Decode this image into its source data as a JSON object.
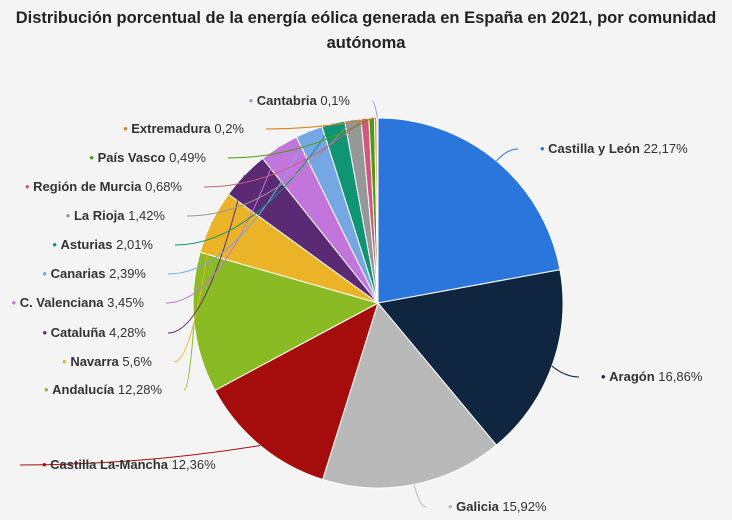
{
  "chart_data": {
    "type": "pie",
    "title": "Distribución porcentual de la energía eólica generada en España en 2021, por comunidad autónoma",
    "unit": "%",
    "slices": [
      {
        "label": "Castilla y León",
        "value": 22.17,
        "display": "22,17%",
        "color": "#2a76dd"
      },
      {
        "label": "Aragón",
        "value": 16.86,
        "display": "16,86%",
        "color": "#10253f"
      },
      {
        "label": "Galicia",
        "value": 15.92,
        "display": "15,92%",
        "color": "#b9b9b9"
      },
      {
        "label": "Castilla La-Mancha",
        "value": 12.36,
        "display": "12,36%",
        "color": "#a50d0d"
      },
      {
        "label": "Andalucía",
        "value": 12.28,
        "display": "12,28%",
        "color": "#8aba24"
      },
      {
        "label": "Navarra",
        "value": 5.6,
        "display": "5,6%",
        "color": "#ebb428"
      },
      {
        "label": "Cataluña",
        "value": 4.28,
        "display": "4,28%",
        "color": "#5b2a74"
      },
      {
        "label": "C. Valenciana",
        "value": 3.45,
        "display": "3,45%",
        "color": "#c275db"
      },
      {
        "label": "Canarias",
        "value": 2.39,
        "display": "2,39%",
        "color": "#76a7e5"
      },
      {
        "label": "Asturias",
        "value": 2.01,
        "display": "2,01%",
        "color": "#0f9474"
      },
      {
        "label": "La Rioja",
        "value": 1.42,
        "display": "1,42%",
        "color": "#979797"
      },
      {
        "label": "Región de Murcia",
        "value": 0.68,
        "display": "0,68%",
        "color": "#d0597b"
      },
      {
        "label": "País Vasco",
        "value": 0.49,
        "display": "0,49%",
        "color": "#4e9a10"
      },
      {
        "label": "Extremadura",
        "value": 0.2,
        "display": "0,2%",
        "color": "#e07b1a"
      },
      {
        "label": "Cantabria",
        "value": 0.1,
        "display": "0,1%",
        "color": "#a896d6"
      }
    ]
  }
}
